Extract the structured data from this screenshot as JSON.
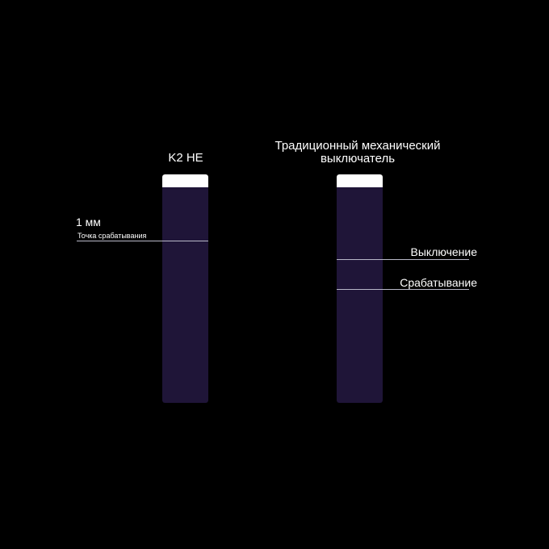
{
  "colors": {
    "background": "#000000",
    "keycap": "#ffffff",
    "stem": "#1f1538",
    "text": "#ffffff",
    "marker_line": "#b8b8c8"
  },
  "left_switch": {
    "title": "K2 HE",
    "distance_label": "1 мм",
    "point_label": "Точка срабатывания"
  },
  "right_switch": {
    "title_line1": "Традиционный механический",
    "title_line2": "выключатель",
    "release_label": "Выключение",
    "actuation_label": "Срабатывание"
  }
}
